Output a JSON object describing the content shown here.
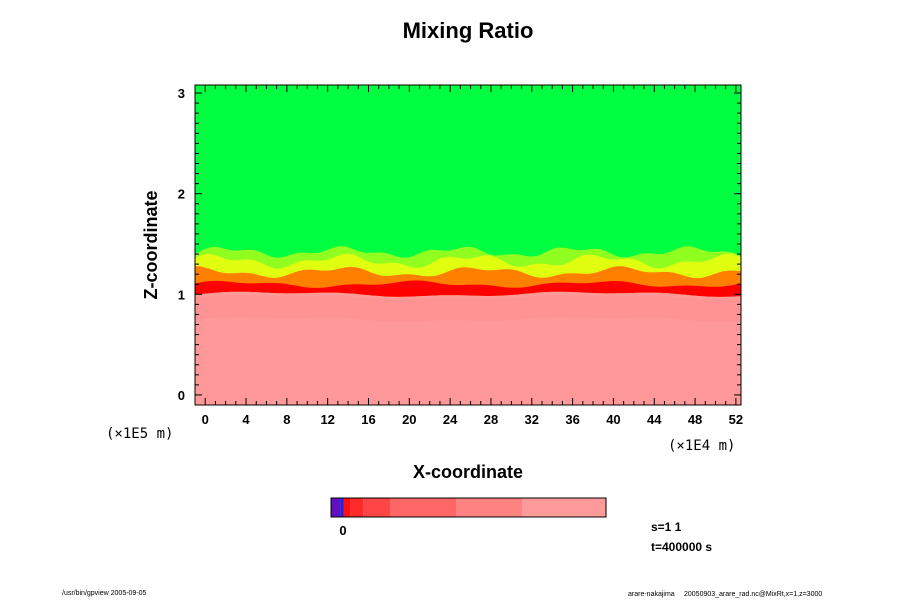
{
  "chart_data": {
    "type": "heatmap",
    "title": "Mixing Ratio",
    "xlabel": "X-coordinate",
    "ylabel": "Z-coordinate",
    "x_unit_label": "(×1E4 m)",
    "y_unit_label": "(×1E5 m)",
    "xlim": [
      -1,
      52.5
    ],
    "ylim": [
      -0.1,
      3.08
    ],
    "x_ticks": [
      "0",
      "4",
      "8",
      "12",
      "16",
      "20",
      "24",
      "28",
      "32",
      "36",
      "40",
      "44",
      "48",
      "52"
    ],
    "y_ticks": [
      "0",
      "1",
      "2",
      "3"
    ],
    "regions": [
      {
        "name": "upper",
        "color": "#00ff40",
        "z_range": [
          1.4,
          3.08
        ]
      },
      {
        "name": "transition",
        "colors": [
          "#90ff20",
          "#e0ff10",
          "#ffd000",
          "#ff8000",
          "#ff4040",
          "#ff0000"
        ],
        "z_range": [
          1.0,
          1.4
        ]
      },
      {
        "name": "lower",
        "color": "#ff9999",
        "z_range": [
          -0.1,
          1.0
        ]
      }
    ],
    "colorbar": {
      "colors": [
        "#6010c0",
        "#2020e0",
        "#ff1010",
        "#ff2a2a",
        "#ff4545",
        "#ff6666",
        "#ff8282",
        "#ff9a9a"
      ],
      "fractions": [
        0.035,
        0.012,
        0.025,
        0.045,
        0.1,
        0.24,
        0.24,
        0.305
      ],
      "tick_label": "0"
    },
    "annotations": {
      "s": "s=1 1",
      "t": "t=400000 s"
    }
  },
  "footer": {
    "left": "/usr/bin/gpview 2005-09-05",
    "right_main": "arare-nakajima",
    "right_small": "20050903_arare_rad.nc@MixRt,x=1,z=3000"
  }
}
